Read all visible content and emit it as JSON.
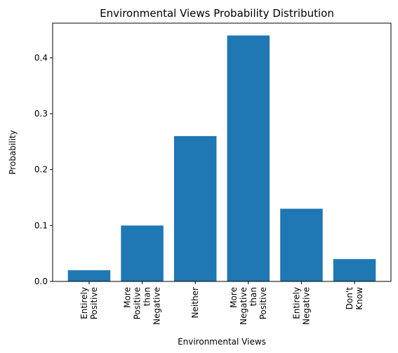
{
  "chart_data": {
    "type": "bar",
    "title": "Environmental Views Probability Distribution",
    "xlabel": "Environmental Views",
    "ylabel": "Probability",
    "categories": [
      [
        "Entirely",
        "Positive"
      ],
      [
        "More",
        "Positive",
        "than",
        "Negative"
      ],
      [
        "Neither"
      ],
      [
        "More",
        "Negative",
        "than",
        "Positive"
      ],
      [
        "Entirely",
        "Negative"
      ],
      [
        "Don't",
        "Know"
      ]
    ],
    "values": [
      0.02,
      0.1,
      0.26,
      0.44,
      0.13,
      0.04
    ],
    "ylim": [
      0,
      0.462
    ],
    "yticks": [
      0.0,
      0.1,
      0.2,
      0.3,
      0.4
    ],
    "ytick_labels": [
      "0.0",
      "0.1",
      "0.2",
      "0.3",
      "0.4"
    ],
    "bar_color": "#1f77b4",
    "grid": false,
    "legend": "none"
  }
}
